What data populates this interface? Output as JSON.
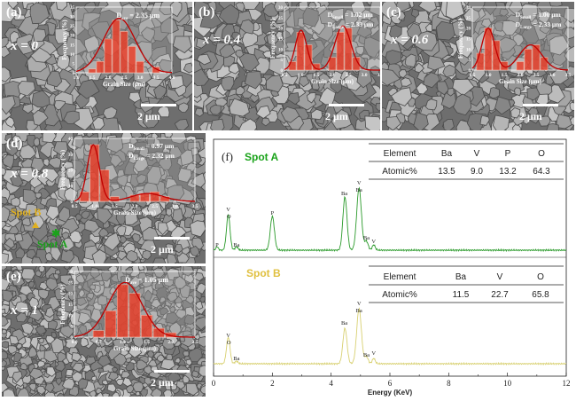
{
  "panels": [
    {
      "id": "a",
      "label": "(a)",
      "x_label": "x = 0",
      "size_text": "D",
      "size_sub": "ave",
      "size_val": " = 2.35 μm",
      "scale": "2 μm",
      "inset": {
        "ylabel": "Frequency (%)",
        "xlabel": "Grain Size (μm)",
        "yticks": [
          "0",
          "5",
          "10",
          "15",
          "20",
          "25",
          "30",
          "35"
        ],
        "xticks": [
          "1.0",
          "1.5",
          "2.0",
          "2.5",
          "3.0",
          "3.5",
          "4.0"
        ],
        "xrange": [
          1.0,
          4.0
        ],
        "ymax": 35,
        "bars": [
          [
            1.5,
            2
          ],
          [
            1.75,
            6
          ],
          [
            2.0,
            18
          ],
          [
            2.25,
            28
          ],
          [
            2.5,
            22
          ],
          [
            2.75,
            14
          ],
          [
            3.0,
            6
          ],
          [
            3.5,
            3
          ]
        ],
        "peaks": [
          [
            2.35,
            0.5,
            29
          ]
        ]
      }
    },
    {
      "id": "b",
      "label": "(b)",
      "x_label": "x = 0.4",
      "size_lines": [
        {
          "t": "D",
          "s": "Small",
          "v": " = 1.02 μm"
        },
        {
          "t": "D",
          "s": "Large",
          "v": " = 2.33 μm"
        }
      ],
      "scale": "2 μm",
      "inset": {
        "ylabel": "Frequency (%)",
        "xlabel": "Grain Size (μm)",
        "yticks": [
          "0",
          "5",
          "10",
          "15",
          "20",
          "25",
          "30"
        ],
        "xticks": [
          "0.5",
          "1.0",
          "1.5",
          "2.0",
          "2.5",
          "3.0",
          "3.5"
        ],
        "xrange": [
          0.5,
          3.5
        ],
        "ymax": 30,
        "bars": [
          [
            0.75,
            4
          ],
          [
            1.0,
            18
          ],
          [
            1.25,
            12
          ],
          [
            1.5,
            3
          ],
          [
            2.0,
            6
          ],
          [
            2.25,
            18
          ],
          [
            2.5,
            20
          ],
          [
            2.75,
            6
          ]
        ],
        "peaks": [
          [
            1.02,
            0.18,
            19
          ],
          [
            2.33,
            0.25,
            21
          ]
        ]
      }
    },
    {
      "id": "c",
      "label": "(c)",
      "x_label": "x = 0.6",
      "size_lines": [
        {
          "t": "D",
          "s": "Small",
          "v": " = 1.00 μm"
        },
        {
          "t": "D",
          "s": "Large",
          "v": " = 2.33 μm"
        }
      ],
      "scale": "2 μm",
      "inset": {
        "ylabel": "Frequency (%)",
        "xlabel": "Grain Size (μm)",
        "yticks": [
          "0",
          "5",
          "10",
          "15",
          "20",
          "25",
          "30"
        ],
        "xticks": [
          "0.5",
          "1.0",
          "1.5",
          "2.0",
          "2.5",
          "3.0",
          "3.5"
        ],
        "xrange": [
          0.5,
          3.5
        ],
        "ymax": 30,
        "bars": [
          [
            0.75,
            8
          ],
          [
            1.0,
            20
          ],
          [
            1.25,
            14
          ],
          [
            1.5,
            4
          ],
          [
            2.0,
            4
          ],
          [
            2.25,
            10
          ],
          [
            2.5,
            12
          ],
          [
            2.75,
            6
          ]
        ],
        "peaks": [
          [
            1.0,
            0.2,
            20
          ],
          [
            2.33,
            0.35,
            12
          ]
        ]
      }
    },
    {
      "id": "d",
      "label": "(d)",
      "x_label": "x = 0.8",
      "size_lines": [
        {
          "t": "D",
          "s": "Small",
          "v": " = 0.97 μm"
        },
        {
          "t": "D",
          "s": "Large",
          "v": " = 2.32 μm"
        }
      ],
      "scale": "2 μm",
      "inset": {
        "ylabel": "Frequency (%)",
        "xlabel": "Grain Size (μm)",
        "yticks": [
          "0",
          "10",
          "20",
          "30",
          "40"
        ],
        "xticks": [
          "0.5",
          "1.0",
          "1.5",
          "2.0",
          "2.5",
          "3.0",
          "3.5"
        ],
        "xrange": [
          0.5,
          3.5
        ],
        "ymax": 40,
        "bars": [
          [
            0.75,
            6
          ],
          [
            1.0,
            36
          ],
          [
            1.25,
            20
          ],
          [
            1.5,
            3
          ],
          [
            2.0,
            4
          ],
          [
            2.25,
            5
          ],
          [
            2.5,
            6
          ],
          [
            2.75,
            3
          ]
        ],
        "peaks": [
          [
            0.97,
            0.15,
            36
          ],
          [
            2.32,
            0.4,
            5
          ]
        ]
      }
    },
    {
      "id": "e",
      "label": "(e)",
      "x_label": "x = 1",
      "size_text": "D",
      "size_sub": "ave",
      "size_val": " = 1.05 μm",
      "scale": "2 μm",
      "inset": {
        "ylabel": "Frequency (%)",
        "xlabel": "Grain Size (μm)",
        "yticks": [
          "0",
          "5",
          "10",
          "15",
          "20",
          "25",
          "30"
        ],
        "xticks": [
          "0.0",
          "0.5",
          "1.0",
          "1.5",
          "2.0",
          "2.5"
        ],
        "xrange": [
          0.0,
          2.5
        ],
        "ymax": 30,
        "bars": [
          [
            0.5,
            3
          ],
          [
            0.75,
            12
          ],
          [
            1.0,
            24
          ],
          [
            1.25,
            20
          ],
          [
            1.5,
            10
          ],
          [
            1.75,
            4
          ],
          [
            2.0,
            2
          ]
        ],
        "peaks": [
          [
            1.05,
            0.35,
            25
          ]
        ]
      }
    }
  ],
  "spots": {
    "a": "Spot A",
    "b": "Spot B",
    "a_color": "#1aa31a",
    "b_color": "#e0b020"
  },
  "eds": {
    "label": "(f)",
    "spotA": "Spot A",
    "spotB": "Spot B",
    "xlabel": "Energy (KeV)",
    "xticks": [
      "0",
      "2",
      "4",
      "6",
      "8",
      "10",
      "12"
    ],
    "tableA": {
      "headers": [
        "Element",
        "Ba",
        "V",
        "P",
        "O"
      ],
      "row_label": "Atomic%",
      "values": [
        "13.5",
        "9.0",
        "13.2",
        "64.3"
      ]
    },
    "tableB": {
      "headers": [
        "Element",
        "Ba",
        "V",
        "O"
      ],
      "row_label": "Atomic%",
      "values": [
        "11.5",
        "22.7",
        "65.8"
      ]
    },
    "peakLabelsA": [
      [
        "P",
        0.1
      ],
      [
        "V",
        0.5
      ],
      [
        "O",
        0.52
      ],
      [
        "Ba",
        0.75
      ],
      [
        "P",
        2.0
      ],
      [
        "Ba",
        4.45
      ],
      [
        "V",
        4.95
      ],
      [
        "Ba",
        4.95
      ],
      [
        "Ba",
        5.2
      ],
      [
        "V",
        5.4
      ]
    ],
    "peakLabelsB": [
      [
        "V",
        0.5
      ],
      [
        "O",
        0.52
      ],
      [
        "Ba",
        0.75
      ],
      [
        "Ba",
        4.45
      ],
      [
        "V",
        4.95
      ],
      [
        "Ba",
        4.95
      ],
      [
        "Ba",
        5.2
      ],
      [
        "V",
        5.4
      ]
    ]
  }
}
